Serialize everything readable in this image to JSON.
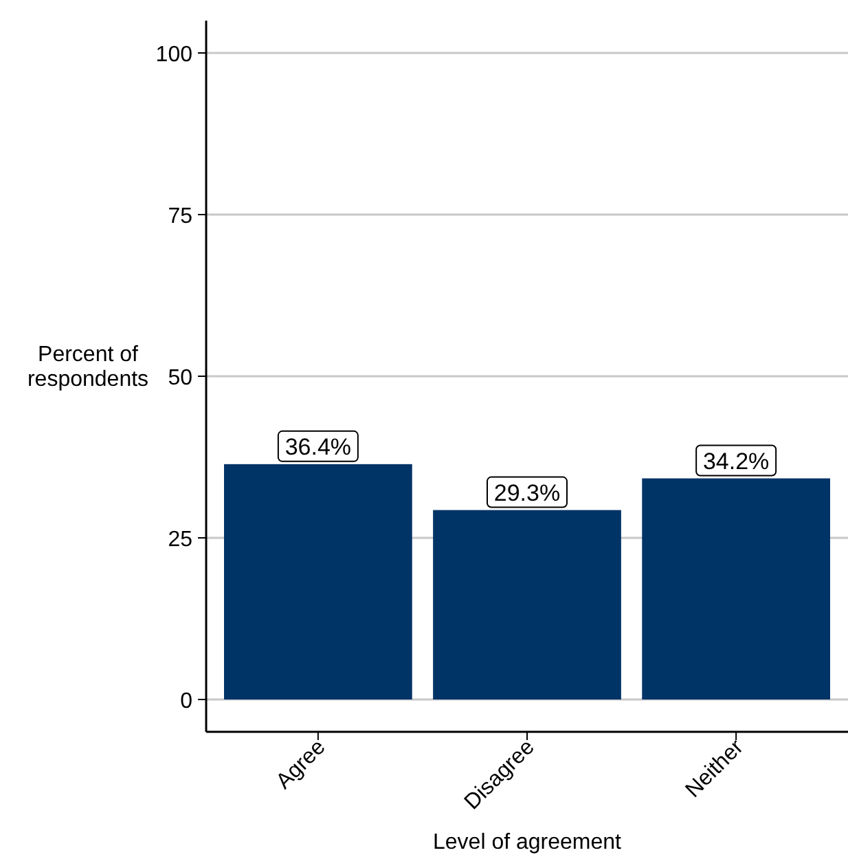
{
  "chart_data": {
    "type": "bar",
    "xlabel": "Level of agreement",
    "ylabel": "Percent of\nrespondents",
    "categories": [
      "Agree",
      "Disagree",
      "Neither"
    ],
    "values": [
      36.4,
      29.3,
      34.2
    ],
    "color": "#003366",
    "value_labels": [
      "36.4%",
      "29.3%",
      "34.2%"
    ],
    "ylim": [
      -5,
      105
    ],
    "yticks": [
      0,
      25,
      50,
      75,
      100
    ],
    "grid": "y"
  }
}
